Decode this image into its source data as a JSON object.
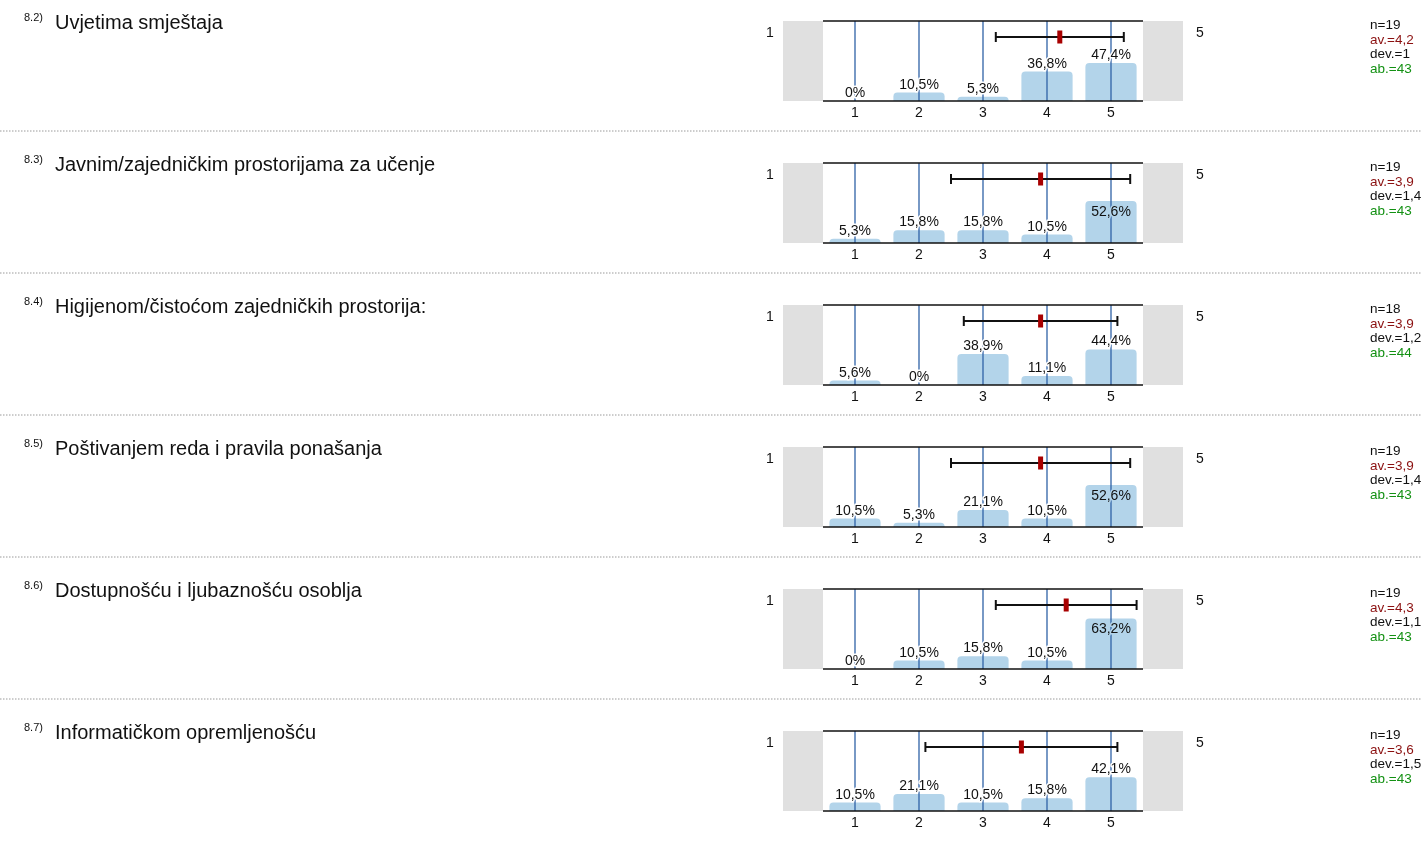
{
  "chart_data": [
    {
      "type": "bar",
      "x": [
        1,
        2,
        3,
        4,
        5
      ],
      "xlim": [
        0.5,
        5.5
      ],
      "xticks": [
        1,
        2,
        3,
        4,
        5
      ],
      "ylim": [
        0,
        100
      ],
      "tick_labels": "x",
      "grid": "x",
      "annotations": [
        "$^{8.2)}$ Uvjetima smještaja",
        "1",
        "5",
        "n=19",
        "av.=4,2",
        "dev.=1",
        "ab.=43"
      ],
      "series": [
        {
          "color": "#b3d4ea",
          "values": [
            0,
            10.5,
            5.3,
            36.8,
            47.4
          ],
          "value_labels": [
            "0%",
            "10,5%",
            "5,3%",
            "36,8%",
            "47,4%"
          ]
        },
        {
          "type": "scatter",
          "color": "#a80000",
          "x": [
            4.2
          ],
          "values": [
            80
          ],
          "xerrors": [
            1
          ]
        }
      ]
    },
    {
      "type": "bar",
      "x": [
        1,
        2,
        3,
        4,
        5
      ],
      "xlim": [
        0.5,
        5.5
      ],
      "xticks": [
        1,
        2,
        3,
        4,
        5
      ],
      "ylim": [
        0,
        100
      ],
      "tick_labels": "x",
      "grid": "x",
      "annotations": [
        "$^{8.3)}$ Javnim/zajedničkim prostorijama za učenje",
        "1",
        "5",
        "n=19",
        "av.=3,9",
        "dev.=1,4",
        "ab.=43"
      ],
      "series": [
        {
          "color": "#b3d4ea",
          "values": [
            5.3,
            15.8,
            15.8,
            10.5,
            52.6
          ],
          "value_labels": [
            "5,3%",
            "15,8%",
            "15,8%",
            "10,5%",
            "52,6%"
          ]
        },
        {
          "type": "scatter",
          "color": "#a80000",
          "x": [
            3.9
          ],
          "values": [
            80
          ],
          "xerrors": [
            1.4
          ]
        }
      ]
    },
    {
      "type": "bar",
      "x": [
        1,
        2,
        3,
        4,
        5
      ],
      "xlim": [
        0.5,
        5.5
      ],
      "xticks": [
        1,
        2,
        3,
        4,
        5
      ],
      "ylim": [
        0,
        100
      ],
      "tick_labels": "x",
      "grid": "x",
      "annotations": [
        "$^{8.4)}$ Higijenom/čistoćom zajedničkih prostorija:",
        "1",
        "5",
        "n=18",
        "av.=3,9",
        "dev.=1,2",
        "ab.=44"
      ],
      "series": [
        {
          "color": "#b3d4ea",
          "values": [
            5.6,
            0,
            38.9,
            11.1,
            44.4
          ],
          "value_labels": [
            "5,6%",
            "0%",
            "38,9%",
            "11,1%",
            "44,4%"
          ]
        },
        {
          "type": "scatter",
          "color": "#a80000",
          "x": [
            3.9
          ],
          "values": [
            80
          ],
          "xerrors": [
            1.2
          ]
        }
      ]
    },
    {
      "type": "bar",
      "x": [
        1,
        2,
        3,
        4,
        5
      ],
      "xlim": [
        0.5,
        5.5
      ],
      "xticks": [
        1,
        2,
        3,
        4,
        5
      ],
      "ylim": [
        0,
        100
      ],
      "tick_labels": "x",
      "grid": "x",
      "annotations": [
        "$^{8.5)}$ Poštivanjem reda i pravila ponašanja",
        "1",
        "5",
        "n=19",
        "av.=3,9",
        "dev.=1,4",
        "ab.=43"
      ],
      "series": [
        {
          "color": "#b3d4ea",
          "values": [
            10.5,
            5.3,
            21.1,
            10.5,
            52.6
          ],
          "value_labels": [
            "10,5%",
            "5,3%",
            "21,1%",
            "10,5%",
            "52,6%"
          ]
        },
        {
          "type": "scatter",
          "color": "#a80000",
          "x": [
            3.9
          ],
          "values": [
            80
          ],
          "xerrors": [
            1.4
          ]
        }
      ]
    },
    {
      "type": "bar",
      "x": [
        1,
        2,
        3,
        4,
        5
      ],
      "xlim": [
        0.5,
        5.5
      ],
      "xticks": [
        1,
        2,
        3,
        4,
        5
      ],
      "ylim": [
        0,
        100
      ],
      "tick_labels": "x",
      "grid": "x",
      "annotations": [
        "$^{8.6)}$ Dostupnošću i ljubaznošću osoblja",
        "1",
        "5",
        "n=19",
        "av.=4,3",
        "dev.=1,1",
        "ab.=43"
      ],
      "series": [
        {
          "color": "#b3d4ea",
          "values": [
            0,
            10.5,
            15.8,
            10.5,
            63.2
          ],
          "value_labels": [
            "0%",
            "10,5%",
            "15,8%",
            "10,5%",
            "63,2%"
          ]
        },
        {
          "type": "scatter",
          "color": "#a80000",
          "x": [
            4.3
          ],
          "values": [
            80
          ],
          "xerrors": [
            1.1
          ]
        }
      ]
    },
    {
      "type": "bar",
      "x": [
        1,
        2,
        3,
        4,
        5
      ],
      "xlim": [
        0.5,
        5.5
      ],
      "xticks": [
        1,
        2,
        3,
        4,
        5
      ],
      "ylim": [
        0,
        100
      ],
      "tick_labels": "x",
      "grid": "x",
      "annotations": [
        "$^{8.7)}$ Informatičkom opremljenošću",
        "1",
        "5",
        "n=19",
        "av.=3,6",
        "dev.=1,5",
        "ab.=43"
      ],
      "series": [
        {
          "color": "#b3d4ea",
          "values": [
            10.5,
            21.1,
            10.5,
            15.8,
            42.1
          ],
          "value_labels": [
            "10,5%",
            "21,1%",
            "10,5%",
            "15,8%",
            "42,1%"
          ]
        },
        {
          "type": "scatter",
          "color": "#a80000",
          "x": [
            3.6
          ],
          "values": [
            80
          ],
          "xerrors": [
            1.5
          ]
        }
      ]
    }
  ]
}
